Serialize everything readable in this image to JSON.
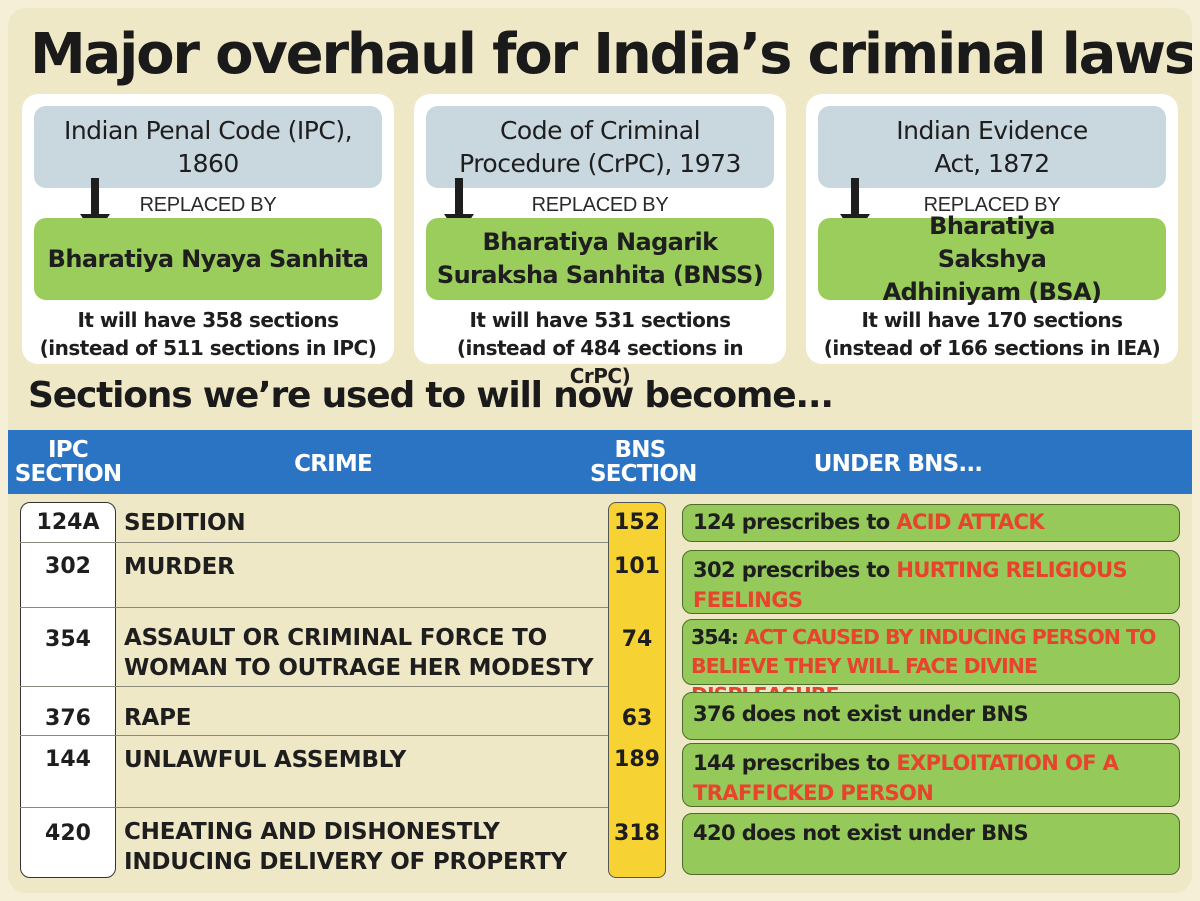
{
  "title": "Major overhaul for India’s criminal laws",
  "cards": [
    {
      "old": "Indian Penal Code (IPC), 1860",
      "replaced_by": "REPLACED BY",
      "new": "Bharatiya Nyaya Sanhita",
      "note": "It will have 358 sections (instead of 511 sections in IPC)"
    },
    {
      "old": "Code of Criminal Procedure (CrPC), 1973",
      "replaced_by": "REPLACED BY",
      "new": "Bharatiya Nagarik Suraksha Sanhita (BNSS)",
      "note": "It will have 531 sections (instead of 484 sections in CrPC)"
    },
    {
      "old": "Indian Evidence Act, 1872",
      "replaced_by": "REPLACED BY",
      "new": "Bharatiya Sakshya Adhiniyam (BSA)",
      "note": "It will have 170 sections (instead of 166 sections in IEA)"
    }
  ],
  "subtitle": "Sections we’re used to will now become...",
  "table": {
    "headers": {
      "ipc": "IPC SECTION",
      "crime": "CRIME",
      "bns": "BNS SECTION",
      "under": "UNDER BNS..."
    },
    "rows": [
      {
        "ipc": "124A",
        "crime": "SEDITION",
        "bns": "152",
        "under_plain": "124 prescribes to ",
        "under_red": "ACID ATTACK"
      },
      {
        "ipc": "302",
        "crime": "MURDER",
        "bns": "101",
        "under_plain": "302 prescribes to ",
        "under_red": "HURTING RELIGIOUS FEELINGS"
      },
      {
        "ipc": "354",
        "crime": "ASSAULT OR CRIMINAL FORCE TO WOMAN TO OUTRAGE HER MODESTY",
        "bns": "74",
        "under_plain": "354: ",
        "under_red": "ACT CAUSED BY INDUCING PERSON TO BELIEVE THEY WILL FACE DIVINE DISPLEASURE"
      },
      {
        "ipc": "376",
        "crime": "RAPE",
        "bns": "63",
        "under_plain": "376 does not exist under BNS",
        "under_red": ""
      },
      {
        "ipc": "144",
        "crime": "UNLAWFUL ASSEMBLY",
        "bns": "189",
        "under_plain": "144 prescribes to ",
        "under_red": "EXPLOITATION OF A TRAFFICKED PERSON"
      },
      {
        "ipc": "420",
        "crime": "CHEATING AND DISHONESTLY INDUCING DELIVERY OF PROPERTY",
        "bns": "318",
        "under_plain": "420 does not exist under BNS",
        "under_red": ""
      }
    ]
  },
  "colors": {
    "background": "#efe8c7",
    "old_box": "#c9d7df",
    "new_box": "#9bcd5c",
    "header_bar": "#2b74c4",
    "bns_column": "#f7d233",
    "highlight_red": "#e8432d"
  }
}
